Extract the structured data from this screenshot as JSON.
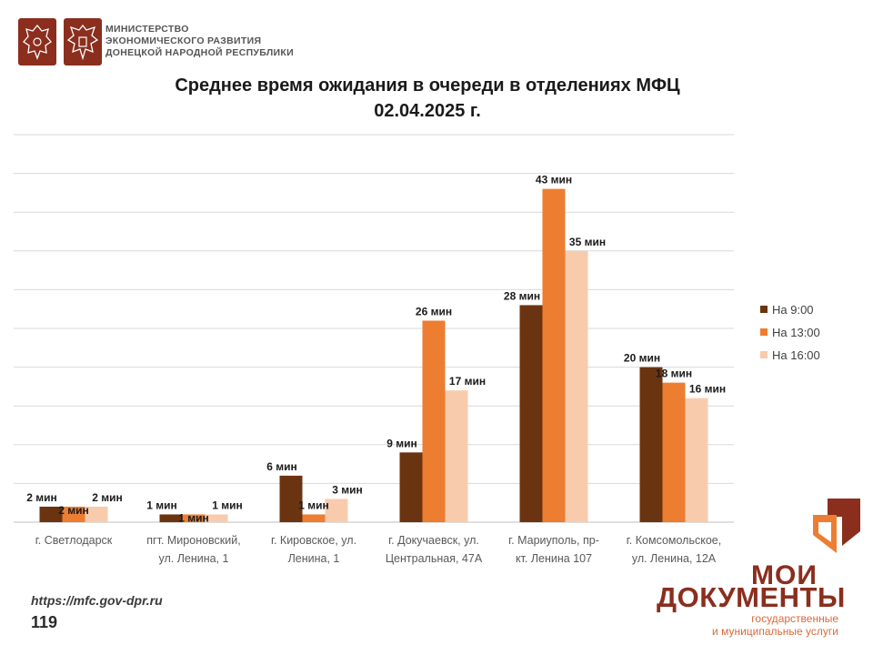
{
  "header": {
    "ministry_lines": [
      "МИНИСТЕРСТВО",
      "ЭКОНОМИЧЕСКОГО РАЗВИТИЯ",
      "ДОНЕЦКОЙ НАРОДНОЙ РЕСПУБЛИКИ"
    ],
    "emblem_icons": [
      "coat-of-arms-russia-icon",
      "coat-of-arms-dpr-icon"
    ]
  },
  "chart_data": {
    "type": "bar",
    "title": "Среднее время ожидания в очереди в отделениях МФЦ",
    "subtitle": "02.04.2025 г.",
    "categories": [
      [
        "г. Светлодарск"
      ],
      [
        "пгт. Мироновский,",
        "ул. Ленина, 1"
      ],
      [
        "г. Кировское, ул.",
        "Ленина, 1"
      ],
      [
        "г. Докучаевск, ул.",
        "Центральная, 47А"
      ],
      [
        "г. Мариуполь, пр-",
        "кт. Ленина 107"
      ],
      [
        "г. Комсомольское,",
        "ул. Ленина, 12А"
      ]
    ],
    "series": [
      {
        "name": "На 9:00",
        "color": "#6b3410",
        "values": [
          2,
          1,
          6,
          9,
          28,
          20
        ]
      },
      {
        "name": "На 13:00",
        "color": "#ed7d31",
        "values": [
          2,
          1,
          1,
          26,
          43,
          18
        ]
      },
      {
        "name": "На 16:00",
        "color": "#f8cbad",
        "values": [
          2,
          1,
          3,
          17,
          35,
          16
        ]
      }
    ],
    "value_suffix": " мин",
    "ylim": [
      0,
      50
    ],
    "grid": true,
    "legend_position": "right",
    "xlabel": "",
    "ylabel": ""
  },
  "footer": {
    "url": "https://mfc.gov-dpr.ru",
    "page_number": "119"
  },
  "logo": {
    "line1": "МОИ",
    "line2": "ДОКУМЕНТЫ",
    "sub_line1": "государственные",
    "sub_line2": "и муниципальные услуги",
    "mark_colors": [
      "#8b2e1e",
      "#ed7d31"
    ]
  }
}
